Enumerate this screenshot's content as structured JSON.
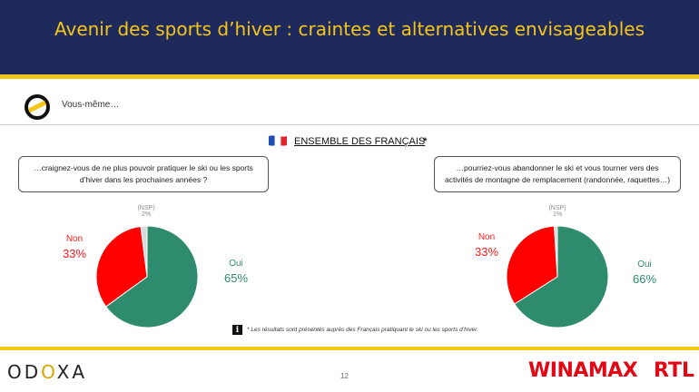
{
  "header": {
    "title": "Avenir des sports d’hiver : craintes et alternatives envisageables"
  },
  "intro": {
    "vous_meme": "Vous-même…"
  },
  "population": {
    "label": "ENSEMBLE DES FRANÇAIS",
    "asterisk": "*"
  },
  "questions": [
    "…craignez-vous de ne plus pouvoir pratiquer le ski ou les sports d’hiver dans les prochaines années ?",
    "…pourriez-vous abandonner le ski et vous tourner vers des activités de montagne de remplacement (randonnée, raquettes…)"
  ],
  "colors": {
    "oui": "#2e8b6e",
    "non": "#ff0000",
    "nsp": "#d9d9d9",
    "header": "#1f2a5c",
    "accent": "#f5c518"
  },
  "chart_data": [
    {
      "type": "pie",
      "slices": [
        {
          "label": "Oui",
          "value": 65,
          "display": "65%",
          "color": "#2e8b6e"
        },
        {
          "label": "Non",
          "value": 33,
          "display": "33%",
          "color": "#ff0000"
        },
        {
          "label": "(NSP)",
          "value": 2,
          "display": "2%",
          "color": "#d9d9d9"
        }
      ]
    },
    {
      "type": "pie",
      "slices": [
        {
          "label": "Oui",
          "value": 66,
          "display": "66%",
          "color": "#2e8b6e"
        },
        {
          "label": "Non",
          "value": 33,
          "display": "33%",
          "color": "#ff0000"
        },
        {
          "label": "(NSP)",
          "value": 1,
          "display": "1%",
          "color": "#d9d9d9"
        }
      ]
    }
  ],
  "footnote": {
    "icon": "info-icon",
    "text": "* Les résultats sont présentés auprès des Français pratiquant le ski ou les sports d’hiver."
  },
  "footer": {
    "odoxa_left": "OD",
    "odoxa_mid": "O",
    "odoxa_right": "XA",
    "page_number": "12",
    "winamax": "WINAMAX",
    "rtl": "RTL"
  }
}
